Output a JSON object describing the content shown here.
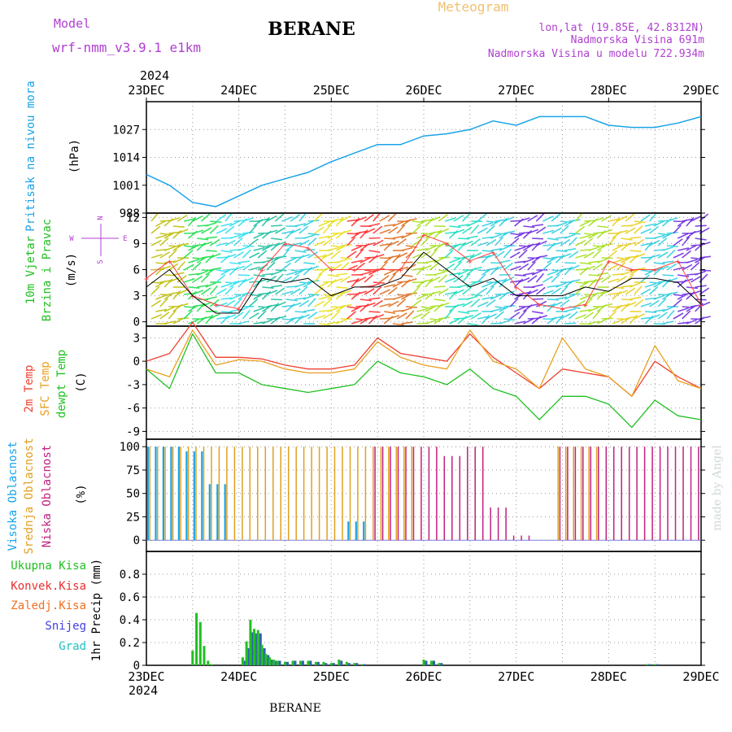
{
  "header": {
    "model_label": "Model",
    "model_name": "wrf-nmm_v3.9.1 e1km",
    "station": "BERANE",
    "product": "Meteogram",
    "coords": "lon,lat (19.85E, 42.8312N)",
    "elevation": "Nadmorska Visina 691m",
    "model_elevation": "Nadmorska Visina u modelu 722.934m",
    "year_top": "2024",
    "year_bottom": "2024",
    "footer_station": "BERANE",
    "credit": "made by Angel"
  },
  "colors": {
    "pressure": "#1aa3e8",
    "wind_speed": "#000000",
    "wind_gust": "#ff4040",
    "temp2m": "#ee4030",
    "sfc_temp": "#e8a020",
    "dewpoint": "#20c020",
    "cloud_high": "#1aa3e8",
    "cloud_mid": "#e0a020",
    "cloud_low": "#c02080",
    "precip_total": "#20c020",
    "precip_conv": "#e83030",
    "precip_frz": "#f07020",
    "precip_snow": "#4040e0",
    "precip_graupel": "#20c0c0",
    "magenta_text": "#b040d0",
    "orange_text": "#f0a030"
  },
  "chart_data": [
    {
      "type": "line",
      "panel": "pressure",
      "ylabel": "(hPa)",
      "side_labels": [
        "Pritisak na nivou mora"
      ],
      "x_ticks": [
        "23DEC",
        "24DEC",
        "25DEC",
        "26DEC",
        "27DEC",
        "28DEC",
        "29DEC"
      ],
      "ylim": [
        988,
        1040
      ],
      "yticks": [
        988,
        1001,
        1014,
        1027
      ],
      "x_hours": [
        0,
        6,
        12,
        18,
        24,
        30,
        36,
        42,
        48,
        54,
        60,
        66,
        72,
        78,
        84,
        90,
        96,
        102,
        108,
        114,
        120,
        126,
        132,
        138,
        144
      ],
      "series": [
        {
          "values": [
            1006,
            1001,
            993,
            991,
            996,
            1001,
            1004,
            1007,
            1012,
            1016,
            1020,
            1020,
            1024,
            1025,
            1027,
            1031,
            1029,
            1033,
            1033,
            1033,
            1029,
            1028,
            1028,
            1030,
            1033
          ]
        }
      ]
    },
    {
      "type": "line",
      "panel": "wind",
      "ylabel": "(m/s)",
      "side_labels": [
        "10m Vjetar",
        "Brzina i Pravac"
      ],
      "compass": [
        "N",
        "W",
        "E",
        "S"
      ],
      "ylim": [
        -0.5,
        12.5
      ],
      "yticks": [
        0,
        3,
        6,
        9,
        12
      ],
      "x_hours": [
        0,
        6,
        12,
        18,
        24,
        30,
        36,
        42,
        48,
        54,
        60,
        66,
        72,
        78,
        84,
        90,
        96,
        102,
        108,
        114,
        120,
        126,
        132,
        138,
        144
      ],
      "series": [
        {
          "name": "speed",
          "values": [
            4,
            6,
            3,
            1,
            1,
            5,
            4.5,
            5,
            3,
            4,
            4,
            5,
            8,
            6,
            4,
            5,
            3,
            3,
            3,
            4,
            3.5,
            5,
            5,
            4.5,
            2
          ]
        },
        {
          "name": "gust",
          "values": [
            5,
            7,
            3,
            2,
            1.5,
            6,
            9,
            8.5,
            6,
            6,
            6,
            6,
            10,
            9,
            7,
            8,
            4,
            2,
            1.5,
            2,
            7,
            6,
            6,
            7,
            2
          ]
        }
      ],
      "barb_band_colors": [
        "#c0c010",
        "#20e050",
        "#30e0f0",
        "#20c0a0",
        "#30d0e0",
        "#e8e020",
        "#ff3030",
        "#e07020",
        "#a8e020",
        "#20e0c0",
        "#30d0e0",
        "#7030e0",
        "#30d0e0",
        "#a8e020",
        "#e8d020",
        "#30d0e0",
        "#7030e0"
      ]
    },
    {
      "type": "line",
      "panel": "temperature",
      "ylabel": "(C)",
      "side_labels": [
        "2m Temp",
        "SFC Temp",
        "dewpt Temp"
      ],
      "ylim": [
        -10,
        4.5
      ],
      "yticks": [
        -9,
        -6,
        -3,
        0,
        3
      ],
      "x_hours": [
        0,
        6,
        12,
        18,
        24,
        30,
        36,
        42,
        48,
        54,
        60,
        66,
        72,
        78,
        84,
        90,
        96,
        102,
        108,
        114,
        120,
        126,
        132,
        138,
        144
      ],
      "series": [
        {
          "name": "2m Temp",
          "values": [
            0,
            1,
            5,
            0.5,
            0.5,
            0.3,
            -0.5,
            -1,
            -1,
            -0.5,
            3,
            1,
            0.5,
            0,
            3.5,
            0.5,
            -1.5,
            -3.5,
            -1,
            -1.5,
            -2,
            -4.5,
            0,
            -2,
            -3.5
          ]
        },
        {
          "name": "SFC Temp",
          "values": [
            -1,
            -2,
            4,
            -0.5,
            0.2,
            0,
            -1,
            -1.5,
            -1.5,
            -1,
            2.5,
            0.5,
            -0.5,
            -1,
            4,
            0,
            -1,
            -3.5,
            3,
            -1,
            -2,
            -4.5,
            2,
            -2.5,
            -3.5
          ]
        },
        {
          "name": "dewpt Temp",
          "values": [
            -1,
            -3.5,
            3.5,
            -1.5,
            -1.5,
            -3,
            -3.5,
            -4,
            -3.5,
            -3,
            0,
            -1.5,
            -2,
            -3,
            -1,
            -3.5,
            -4.5,
            -7.5,
            -4.5,
            -4.5,
            -5.5,
            -8.5,
            -5,
            -7,
            -7.5
          ]
        }
      ]
    },
    {
      "type": "bar",
      "panel": "cloud",
      "ylabel": "(%)",
      "side_labels": [
        "Visoka Oblacnost",
        "Srednja Oblacnost",
        "Niska Oblacnost"
      ],
      "ylim": [
        0,
        100
      ],
      "yticks": [
        0,
        25,
        50,
        75,
        100
      ],
      "x_hours": [
        0,
        6,
        12,
        18,
        24,
        30,
        36,
        42,
        48,
        54,
        60,
        66,
        72,
        78,
        84,
        90,
        96,
        102,
        108,
        114,
        120,
        126,
        132,
        138,
        144
      ],
      "series": [
        {
          "name": "Visoka Oblacnost",
          "values": [
            100,
            100,
            95,
            60,
            0,
            0,
            0,
            0,
            0,
            20,
            0,
            0,
            0,
            0,
            0,
            0,
            0,
            0,
            0,
            0,
            0,
            0,
            0,
            0,
            0
          ]
        },
        {
          "name": "Srednja Oblacnost",
          "values": [
            100,
            100,
            100,
            100,
            100,
            100,
            100,
            100,
            100,
            100,
            100,
            100,
            0,
            0,
            0,
            0,
            0,
            0,
            100,
            100,
            0,
            0,
            0,
            0,
            0
          ]
        },
        {
          "name": "Niska Oblacnost",
          "values": [
            0,
            0,
            0,
            0,
            0,
            0,
            0,
            0,
            0,
            0,
            100,
            100,
            100,
            90,
            100,
            35,
            5,
            0,
            100,
            100,
            100,
            100,
            100,
            100,
            100
          ]
        }
      ]
    },
    {
      "type": "bar",
      "panel": "precip",
      "ylabel": "1hr Precip (mm)",
      "side_labels": [
        "Ukupna Kisa",
        "Konvek.Kisa",
        "Zaledj.Kisa",
        "Snijeg",
        "Grad"
      ],
      "ylim": [
        0,
        1.0
      ],
      "yticks": [
        0,
        0.2,
        0.4,
        0.6,
        0.8
      ],
      "x_ticks": [
        "23DEC",
        "24DEC",
        "25DEC",
        "26DEC",
        "27DEC",
        "28DEC",
        "29DEC"
      ],
      "bars_hours": [
        12,
        13,
        14,
        15,
        16,
        17,
        25,
        26,
        27,
        28,
        29,
        30,
        31,
        32,
        33,
        34,
        36,
        38,
        40,
        42,
        44,
        46,
        48,
        50,
        52,
        54,
        56,
        72,
        74,
        76,
        130,
        132
      ],
      "series": [
        {
          "name": "Ukupna Kisa",
          "values": [
            0.13,
            0.46,
            0.38,
            0.17,
            0.04,
            0.01,
            0.07,
            0.21,
            0.4,
            0.32,
            0.31,
            0.18,
            0.1,
            0.07,
            0.05,
            0.04,
            0.03,
            0.04,
            0.04,
            0.04,
            0.03,
            0.03,
            0.02,
            0.05,
            0.03,
            0.02,
            0.01,
            0.05,
            0.04,
            0.02,
            0.01,
            0.01
          ]
        },
        {
          "name": "Snijeg",
          "values": [
            0,
            0,
            0,
            0,
            0,
            0,
            0.04,
            0.15,
            0.29,
            0.28,
            0.28,
            0.15,
            0.09,
            0.05,
            0.04,
            0.04,
            0.03,
            0.04,
            0.04,
            0.04,
            0.03,
            0.02,
            0.02,
            0.04,
            0.02,
            0.02,
            0.01,
            0.04,
            0.04,
            0.02,
            0.01,
            0.01
          ]
        }
      ]
    }
  ]
}
